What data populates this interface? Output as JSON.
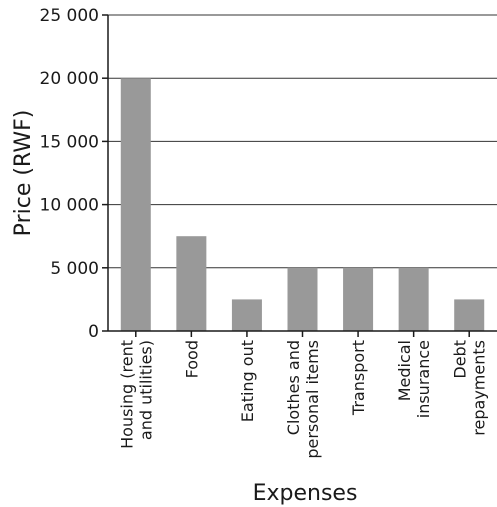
{
  "chart_data": {
    "type": "bar",
    "categories": [
      [
        "Housing (rent",
        "and utilities)"
      ],
      [
        "Food"
      ],
      [
        "Eating out"
      ],
      [
        "Clothes and",
        "personal items"
      ],
      [
        "Transport"
      ],
      [
        "Medical",
        "insurance"
      ],
      [
        "Debt",
        "repayments"
      ]
    ],
    "values": [
      20000,
      7500,
      2500,
      5000,
      5000,
      5000,
      2500
    ],
    "ylim": [
      0,
      25000
    ],
    "yticks": [
      0,
      5000,
      10000,
      15000,
      20000,
      25000
    ],
    "ytick_labels": [
      "0",
      "5 000",
      "10 000",
      "15 000",
      "20 000",
      "25 000"
    ],
    "xlabel": "Expenses",
    "ylabel": "Price (RWF)",
    "grid": true,
    "colors": {
      "bar": "#999999",
      "text": "#1a1a1a"
    }
  }
}
